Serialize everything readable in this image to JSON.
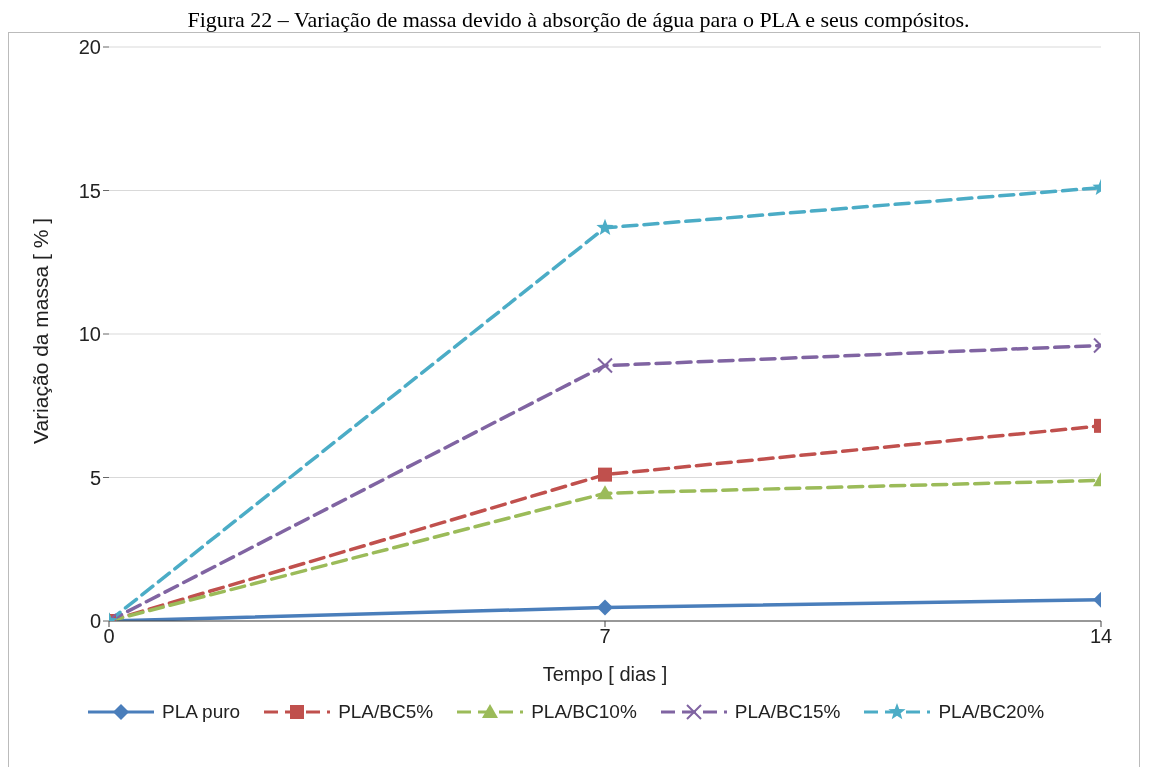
{
  "chart_data": {
    "type": "line",
    "title": "Figura 22 – Variação de massa devido à absorção de água para o PLA e seus compósitos.",
    "xlabel": "Tempo [ dias ]",
    "ylabel": "Variação da massa [ % ]",
    "x": [
      0,
      7,
      14
    ],
    "xlim": [
      0,
      14
    ],
    "xticks": [
      0,
      7,
      14
    ],
    "ylim": [
      0,
      20
    ],
    "yticks": [
      0,
      5,
      10,
      15,
      20
    ],
    "grid": "y",
    "legend": "bottom",
    "series": [
      {
        "name": "PLA puro",
        "color": "#4a7ebb",
        "values": [
          0,
          0.47,
          0.74
        ],
        "marker": "diamond",
        "line_style": "solid"
      },
      {
        "name": "PLA/BC5%",
        "color": "#c0504d",
        "values": [
          0,
          5.1,
          6.8
        ],
        "marker": "square",
        "line_style": "dashed"
      },
      {
        "name": "PLA/BC10%",
        "color": "#9bbb59",
        "values": [
          0,
          4.45,
          4.9
        ],
        "marker": "triangle",
        "line_style": "dashed"
      },
      {
        "name": "PLA/BC15%",
        "color": "#8064a2",
        "values": [
          0,
          8.9,
          9.6
        ],
        "marker": "cross",
        "line_style": "dashed"
      },
      {
        "name": "PLA/BC20%",
        "color": "#4bacc6",
        "values": [
          0,
          13.7,
          15.1
        ],
        "marker": "star",
        "line_style": "dashed"
      }
    ]
  }
}
